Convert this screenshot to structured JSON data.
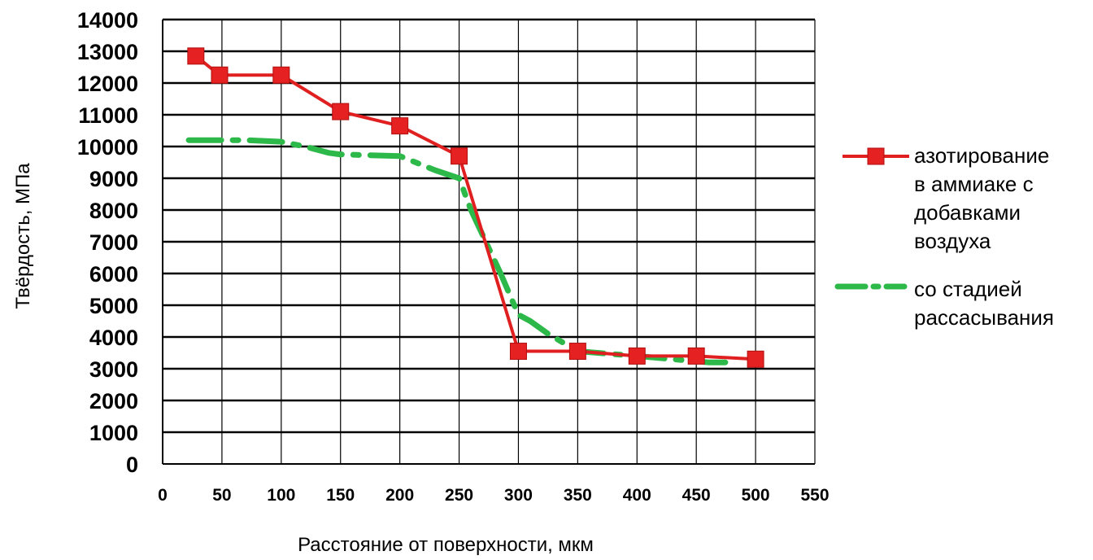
{
  "chart_data": {
    "type": "line",
    "xlabel": "Расстояние от поверхности, мкм",
    "ylabel": "Твёрдость, МПа",
    "xlim": [
      0,
      550
    ],
    "ylim": [
      0,
      14000
    ],
    "xticks": [
      0,
      50,
      100,
      150,
      200,
      250,
      300,
      350,
      400,
      450,
      500,
      550
    ],
    "yticks": [
      0,
      1000,
      2000,
      3000,
      4000,
      5000,
      6000,
      7000,
      8000,
      9000,
      10000,
      11000,
      12000,
      13000,
      14000
    ],
    "grid": "horizontal and vertical",
    "legend_position": "right",
    "series": [
      {
        "name_lines": [
          "азотирование",
          "в аммиаке  с",
          "добавками",
          "воздуха"
        ],
        "color": "#e02020",
        "style": "solid line, square markers",
        "x": [
          28,
          48,
          100,
          150,
          200,
          250,
          300,
          350,
          400,
          450,
          500
        ],
        "y": [
          12850,
          12250,
          12250,
          11100,
          10650,
          9700,
          3550,
          3550,
          3400,
          3400,
          3300
        ]
      },
      {
        "name_lines": [
          " со стадией",
          "рассасывания"
        ],
        "color": "#2db84a",
        "style": "dash-dot line",
        "x": [
          22,
          70,
          100,
          120,
          140,
          150,
          200,
          210,
          230,
          250,
          260,
          270,
          285,
          300,
          310,
          325,
          350,
          400,
          430,
          460,
          480
        ],
        "y": [
          10200,
          10200,
          10150,
          10000,
          9800,
          9750,
          9700,
          9550,
          9250,
          9000,
          8000,
          7200,
          6000,
          4700,
          4500,
          4100,
          3550,
          3400,
          3300,
          3200,
          3200
        ]
      }
    ]
  }
}
